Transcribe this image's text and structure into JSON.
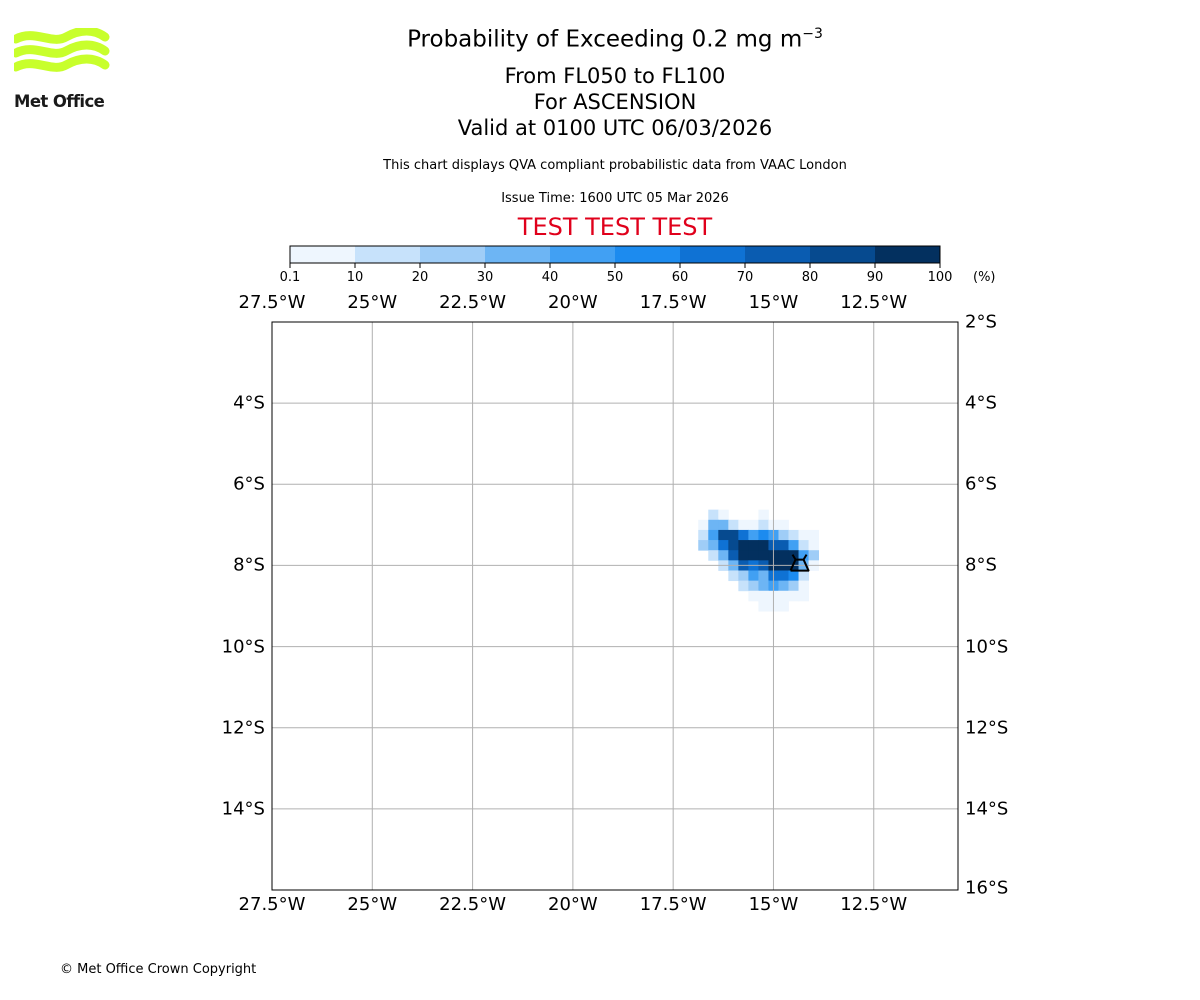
{
  "branding": {
    "logo_text": "Met Office",
    "logo_color": "#c8ff2c",
    "copyright": "© Met Office Crown Copyright"
  },
  "header": {
    "title_main": "Probability of Exceeding 0.2 mg m",
    "title_sup": "−3",
    "flight_levels": "From FL050 to FL100",
    "location": "For ASCENSION",
    "valid_time": "Valid at 0100 UTC 06/03/2026",
    "description": "This chart displays QVA compliant probabilistic data from VAAC London",
    "issue_time": "Issue Time: 1600 UTC 05 Mar 2026",
    "test_banner": "TEST TEST TEST",
    "test_color": "#e0001b"
  },
  "colorbar": {
    "unit": "(%)",
    "ticks": [
      "0.1",
      "10",
      "20",
      "30",
      "40",
      "50",
      "60",
      "70",
      "80",
      "90",
      "100"
    ],
    "colors": [
      "#eef6fe",
      "#c7e2fb",
      "#9fcdf7",
      "#6db5f4",
      "#41a0f3",
      "#1c8bef",
      "#0f72d4",
      "#0a5cb1",
      "#064a8f",
      "#03305f"
    ]
  },
  "map": {
    "lon_range": [
      -27.5,
      -10.4
    ],
    "lat_range": [
      -16.0,
      -2.0
    ],
    "lon_ticks": [
      -27.5,
      -25,
      -22.5,
      -20,
      -17.5,
      -15,
      -12.5
    ],
    "lat_ticks": [
      -4,
      -6,
      -8,
      -10,
      -12,
      -14
    ],
    "lon_labels_top": [
      "27.5°W",
      "25°W",
      "22.5°W",
      "20°W",
      "17.5°W",
      "15°W",
      "12.5°W"
    ],
    "lon_labels_bottom": [
      "27.5°W",
      "25°W",
      "22.5°W",
      "20°W",
      "17.5°W",
      "15°W",
      "12.5°W"
    ],
    "lat_labels_left": [
      "4°S",
      "6°S",
      "8°S",
      "10°S",
      "12°S",
      "14°S"
    ],
    "lat_labels_right": [
      "2°S",
      "4°S",
      "6°S",
      "8°S",
      "10°S",
      "12°S",
      "14°S",
      "16°S"
    ],
    "cell_size_deg": 0.25,
    "grid_color": "#b0b0b0",
    "volcano_name": "ASCENSION",
    "volcano_icon": "volcano-icon",
    "volcano_lon": -14.35,
    "volcano_lat": -7.93
  },
  "chart_data": {
    "type": "heatmap",
    "title": "Probability of Exceeding 0.2 mg m−3",
    "colorbar_label": "(%)",
    "xlim": [
      -27.5,
      -10.4
    ],
    "ylim": [
      -16.0,
      -2.0
    ],
    "levels": [
      0.1,
      10,
      20,
      30,
      40,
      50,
      60,
      70,
      80,
      90,
      100
    ],
    "cells": [
      {
        "lon": -16.5,
        "lat": -6.75,
        "level": 2
      },
      {
        "lon": -16.25,
        "lat": -6.75,
        "level": 1
      },
      {
        "lon": -15.25,
        "lat": -6.75,
        "level": 1
      },
      {
        "lon": -16.75,
        "lat": -7.0,
        "level": 1
      },
      {
        "lon": -16.5,
        "lat": -7.0,
        "level": 4
      },
      {
        "lon": -16.25,
        "lat": -7.0,
        "level": 4
      },
      {
        "lon": -16.0,
        "lat": -7.0,
        "level": 2
      },
      {
        "lon": -15.75,
        "lat": -7.0,
        "level": 1
      },
      {
        "lon": -15.5,
        "lat": -7.0,
        "level": 1
      },
      {
        "lon": -15.25,
        "lat": -7.0,
        "level": 2
      },
      {
        "lon": -15.0,
        "lat": -7.0,
        "level": 1
      },
      {
        "lon": -14.75,
        "lat": -7.0,
        "level": 1
      },
      {
        "lon": -16.75,
        "lat": -7.25,
        "level": 2
      },
      {
        "lon": -16.5,
        "lat": -7.25,
        "level": 5
      },
      {
        "lon": -16.25,
        "lat": -7.25,
        "level": 9
      },
      {
        "lon": -16.0,
        "lat": -7.25,
        "level": 9
      },
      {
        "lon": -15.75,
        "lat": -7.25,
        "level": 7
      },
      {
        "lon": -15.5,
        "lat": -7.25,
        "level": 5
      },
      {
        "lon": -15.25,
        "lat": -7.25,
        "level": 6
      },
      {
        "lon": -15.0,
        "lat": -7.25,
        "level": 5
      },
      {
        "lon": -14.75,
        "lat": -7.25,
        "level": 3
      },
      {
        "lon": -14.5,
        "lat": -7.25,
        "level": 2
      },
      {
        "lon": -14.25,
        "lat": -7.25,
        "level": 1
      },
      {
        "lon": -14.0,
        "lat": -7.25,
        "level": 1
      },
      {
        "lon": -16.75,
        "lat": -7.5,
        "level": 3
      },
      {
        "lon": -16.5,
        "lat": -7.5,
        "level": 4
      },
      {
        "lon": -16.25,
        "lat": -7.5,
        "level": 7
      },
      {
        "lon": -16.0,
        "lat": -7.5,
        "level": 9
      },
      {
        "lon": -15.75,
        "lat": -7.5,
        "level": 10
      },
      {
        "lon": -15.5,
        "lat": -7.5,
        "level": 10
      },
      {
        "lon": -15.25,
        "lat": -7.5,
        "level": 10
      },
      {
        "lon": -15.0,
        "lat": -7.5,
        "level": 8
      },
      {
        "lon": -14.75,
        "lat": -7.5,
        "level": 8
      },
      {
        "lon": -14.5,
        "lat": -7.5,
        "level": 5
      },
      {
        "lon": -14.25,
        "lat": -7.5,
        "level": 2
      },
      {
        "lon": -14.0,
        "lat": -7.5,
        "level": 1
      },
      {
        "lon": -16.5,
        "lat": -7.75,
        "level": 2
      },
      {
        "lon": -16.25,
        "lat": -7.75,
        "level": 4
      },
      {
        "lon": -16.0,
        "lat": -7.75,
        "level": 8
      },
      {
        "lon": -15.75,
        "lat": -7.75,
        "level": 10
      },
      {
        "lon": -15.5,
        "lat": -7.75,
        "level": 10
      },
      {
        "lon": -15.25,
        "lat": -7.75,
        "level": 10
      },
      {
        "lon": -15.0,
        "lat": -7.75,
        "level": 10
      },
      {
        "lon": -14.75,
        "lat": -7.75,
        "level": 10
      },
      {
        "lon": -14.5,
        "lat": -7.75,
        "level": 10
      },
      {
        "lon": -14.25,
        "lat": -7.75,
        "level": 5
      },
      {
        "lon": -14.0,
        "lat": -7.75,
        "level": 3
      },
      {
        "lon": -16.25,
        "lat": -8.0,
        "level": 2
      },
      {
        "lon": -16.0,
        "lat": -8.0,
        "level": 4
      },
      {
        "lon": -15.75,
        "lat": -8.0,
        "level": 8
      },
      {
        "lon": -15.5,
        "lat": -8.0,
        "level": 7
      },
      {
        "lon": -15.25,
        "lat": -8.0,
        "level": 8
      },
      {
        "lon": -15.0,
        "lat": -8.0,
        "level": 10
      },
      {
        "lon": -14.75,
        "lat": -8.0,
        "level": 10
      },
      {
        "lon": -14.5,
        "lat": -8.0,
        "level": 10
      },
      {
        "lon": -14.25,
        "lat": -8.0,
        "level": 4
      },
      {
        "lon": -14.0,
        "lat": -8.0,
        "level": 1
      },
      {
        "lon": -16.0,
        "lat": -8.25,
        "level": 2
      },
      {
        "lon": -15.75,
        "lat": -8.25,
        "level": 3
      },
      {
        "lon": -15.5,
        "lat": -8.25,
        "level": 5
      },
      {
        "lon": -15.25,
        "lat": -8.25,
        "level": 4
      },
      {
        "lon": -15.0,
        "lat": -8.25,
        "level": 7
      },
      {
        "lon": -14.75,
        "lat": -8.25,
        "level": 7
      },
      {
        "lon": -14.5,
        "lat": -8.25,
        "level": 6
      },
      {
        "lon": -14.25,
        "lat": -8.25,
        "level": 2
      },
      {
        "lon": -15.75,
        "lat": -8.5,
        "level": 2
      },
      {
        "lon": -15.5,
        "lat": -8.5,
        "level": 3
      },
      {
        "lon": -15.25,
        "lat": -8.5,
        "level": 4
      },
      {
        "lon": -15.0,
        "lat": -8.5,
        "level": 5
      },
      {
        "lon": -14.75,
        "lat": -8.5,
        "level": 4
      },
      {
        "lon": -14.5,
        "lat": -8.5,
        "level": 3
      },
      {
        "lon": -14.25,
        "lat": -8.5,
        "level": 1
      },
      {
        "lon": -15.5,
        "lat": -8.75,
        "level": 1
      },
      {
        "lon": -15.25,
        "lat": -8.75,
        "level": 1
      },
      {
        "lon": -15.0,
        "lat": -8.75,
        "level": 1
      },
      {
        "lon": -14.75,
        "lat": -8.75,
        "level": 1
      },
      {
        "lon": -14.5,
        "lat": -8.75,
        "level": 1
      },
      {
        "lon": -14.25,
        "lat": -8.75,
        "level": 1
      },
      {
        "lon": -15.25,
        "lat": -9.0,
        "level": 1
      },
      {
        "lon": -15.0,
        "lat": -9.0,
        "level": 1
      },
      {
        "lon": -14.75,
        "lat": -9.0,
        "level": 1
      }
    ]
  }
}
